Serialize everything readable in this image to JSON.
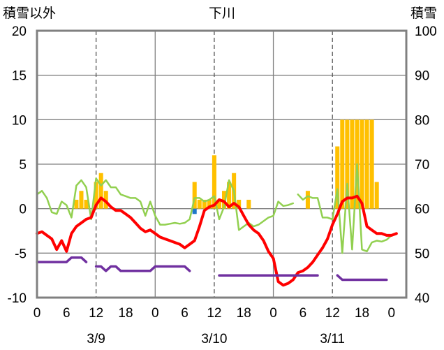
{
  "chart_data": {
    "type": "bar+line",
    "title": "下川",
    "left_axis_label": "積雪以外",
    "right_axis_label": "積雪",
    "y_left": {
      "min": -10,
      "max": 20,
      "ticks": [
        -10,
        -5,
        0,
        5,
        10,
        15,
        20
      ]
    },
    "y_right": {
      "min": 40,
      "max": 100,
      "ticks": [
        40,
        50,
        60,
        70,
        80,
        90,
        100
      ]
    },
    "x_range_hours": [
      0,
      75
    ],
    "x_ticks": [
      {
        "h": 0,
        "label": "0"
      },
      {
        "h": 6,
        "label": "6"
      },
      {
        "h": 12,
        "label": "12"
      },
      {
        "h": 18,
        "label": "18"
      },
      {
        "h": 24,
        "label": "0"
      },
      {
        "h": 30,
        "label": "6"
      },
      {
        "h": 36,
        "label": "12"
      },
      {
        "h": 42,
        "label": "18"
      },
      {
        "h": 48,
        "label": "0"
      },
      {
        "h": 54,
        "label": "6"
      },
      {
        "h": 60,
        "label": "12"
      },
      {
        "h": 66,
        "label": "18"
      },
      {
        "h": 72,
        "label": "0"
      }
    ],
    "date_labels": [
      {
        "h": 12,
        "label": "3/9"
      },
      {
        "h": 36,
        "label": "3/10"
      },
      {
        "h": 60,
        "label": "3/11"
      }
    ],
    "day_boundaries": [
      24,
      48
    ],
    "noon_lines": [
      12,
      36,
      60
    ],
    "grid": true,
    "colors": {
      "precip": "#FFC000",
      "precip_alt": "#1F77C8",
      "temperature": "#FF0000",
      "wind": "#92D050",
      "snow_depth": "#7030A0"
    },
    "series": [
      {
        "key": "precip",
        "kind": "bar",
        "axis": "left",
        "color": "#FFC000",
        "points": [
          [
            8,
            1
          ],
          [
            9,
            2
          ],
          [
            10,
            1
          ],
          [
            12,
            3
          ],
          [
            13,
            4
          ],
          [
            14,
            2
          ],
          [
            32,
            3
          ],
          [
            33,
            1
          ],
          [
            34,
            1
          ],
          [
            35,
            1
          ],
          [
            36,
            6
          ],
          [
            37,
            1
          ],
          [
            38,
            2
          ],
          [
            39,
            3
          ],
          [
            40,
            4
          ],
          [
            41,
            1
          ],
          [
            43,
            1
          ],
          [
            55,
            2
          ],
          [
            61,
            7
          ],
          [
            62,
            10
          ],
          [
            63,
            10
          ],
          [
            64,
            10
          ],
          [
            65,
            10
          ],
          [
            66,
            10
          ],
          [
            67,
            10
          ],
          [
            68,
            10
          ],
          [
            69,
            3
          ]
        ]
      },
      {
        "key": "precip_alt",
        "kind": "bar",
        "axis": "left",
        "color": "#1F77C8",
        "points": [
          [
            32,
            -0.6
          ]
        ]
      },
      {
        "key": "wind",
        "kind": "line",
        "axis": "left",
        "color": "#92D050",
        "segments": [
          [
            [
              0,
              1.6
            ],
            [
              1,
              2
            ],
            [
              2,
              1.2
            ],
            [
              3,
              -0.4
            ],
            [
              4,
              -0.6
            ],
            [
              5,
              0.8
            ],
            [
              6,
              0.4
            ],
            [
              7,
              -1
            ],
            [
              8,
              2.6
            ],
            [
              9,
              3.2
            ],
            [
              10,
              2.4
            ],
            [
              11,
              -1.2
            ],
            [
              12,
              3.4
            ],
            [
              13,
              2.6
            ],
            [
              14,
              3.2
            ],
            [
              15,
              2.4
            ],
            [
              16,
              2.4
            ],
            [
              17,
              1.6
            ],
            [
              18,
              1.4
            ],
            [
              19,
              1.2
            ],
            [
              20,
              1.2
            ],
            [
              21,
              0.8
            ],
            [
              22,
              -0.8
            ],
            [
              23,
              0.8
            ],
            [
              24,
              -0.8
            ],
            [
              25,
              -1.8
            ],
            [
              26,
              -1.8
            ],
            [
              27,
              -1.7
            ],
            [
              28,
              -1.6
            ],
            [
              29,
              -1.7
            ],
            [
              30,
              -1.6
            ],
            [
              31,
              -1.2
            ],
            [
              32,
              1.2
            ],
            [
              33,
              1.2
            ],
            [
              34,
              0.8
            ],
            [
              35,
              1
            ],
            [
              36,
              1.4
            ],
            [
              37,
              -1.2
            ],
            [
              38,
              0.2
            ],
            [
              39,
              3.2
            ],
            [
              40,
              2
            ],
            [
              41,
              -2.4
            ],
            [
              42,
              -2
            ],
            [
              43,
              -1.6
            ],
            [
              44,
              -2
            ],
            [
              45,
              -1.8
            ],
            [
              46,
              -1.4
            ],
            [
              47,
              -1
            ],
            [
              48,
              -0.8
            ],
            [
              49,
              0.8
            ],
            [
              50,
              0.3
            ],
            [
              51,
              0.4
            ],
            [
              52,
              0.6
            ]
          ],
          [
            [
              53,
              1.6
            ],
            [
              54,
              1
            ],
            [
              55,
              1.4
            ],
            [
              56,
              1.2
            ],
            [
              57,
              1.2
            ],
            [
              58,
              -1
            ],
            [
              59,
              -1
            ],
            [
              60,
              -1.2
            ],
            [
              61,
              2.2
            ],
            [
              62,
              -5
            ],
            [
              63,
              2.8
            ],
            [
              64,
              -4.6
            ],
            [
              65,
              5
            ],
            [
              66,
              -4.6
            ],
            [
              67,
              -4.8
            ],
            [
              68,
              -3.8
            ],
            [
              69,
              -3.6
            ],
            [
              70,
              -3.7
            ],
            [
              71,
              -3.5
            ],
            [
              72,
              -3
            ]
          ]
        ]
      },
      {
        "key": "temperature",
        "kind": "line",
        "axis": "left",
        "color": "#FF0000",
        "segments": [
          [
            [
              0,
              -2.8
            ],
            [
              1,
              -2.6
            ],
            [
              2,
              -3
            ],
            [
              3,
              -3.4
            ],
            [
              4,
              -4.6
            ],
            [
              5,
              -3.6
            ],
            [
              6,
              -4.8
            ],
            [
              7,
              -2.8
            ],
            [
              8,
              -2
            ],
            [
              9,
              -1.6
            ],
            [
              10,
              -1.2
            ],
            [
              11,
              -1
            ],
            [
              12,
              0.4
            ],
            [
              13,
              1.2
            ],
            [
              14,
              0.8
            ],
            [
              15,
              0.2
            ],
            [
              16,
              -0.2
            ],
            [
              17,
              -0.2
            ],
            [
              18,
              -0.6
            ],
            [
              19,
              -1
            ],
            [
              20,
              -1.6
            ],
            [
              21,
              -2.2
            ],
            [
              22,
              -2.6
            ],
            [
              23,
              -2.4
            ],
            [
              24,
              -2.8
            ],
            [
              25,
              -3.2
            ],
            [
              26,
              -3.4
            ],
            [
              27,
              -3.6
            ],
            [
              28,
              -3.8
            ],
            [
              29,
              -4
            ],
            [
              30,
              -4.4
            ],
            [
              31,
              -4
            ],
            [
              32,
              -3.6
            ],
            [
              33,
              -2
            ],
            [
              34,
              -0.2
            ],
            [
              35,
              0.2
            ],
            [
              36,
              0.4
            ],
            [
              37,
              1
            ],
            [
              38,
              0.8
            ],
            [
              39,
              0.2
            ],
            [
              40,
              0.6
            ],
            [
              41,
              0.2
            ],
            [
              42,
              -0.8
            ],
            [
              43,
              -1.8
            ],
            [
              44,
              -2.4
            ],
            [
              45,
              -2.8
            ],
            [
              46,
              -3.6
            ],
            [
              47,
              -4.8
            ],
            [
              48,
              -5.6
            ],
            [
              49,
              -8.2
            ],
            [
              50,
              -8.6
            ],
            [
              51,
              -8.4
            ],
            [
              52,
              -8
            ],
            [
              53,
              -7.2
            ],
            [
              54,
              -7
            ],
            [
              55,
              -6.6
            ],
            [
              56,
              -6
            ],
            [
              57,
              -5.2
            ],
            [
              58,
              -4.4
            ],
            [
              59,
              -3.4
            ],
            [
              60,
              -1.8
            ],
            [
              61,
              -0.6
            ],
            [
              62,
              0.8
            ],
            [
              63,
              1.2
            ],
            [
              64,
              1.2
            ],
            [
              65,
              1.4
            ],
            [
              66,
              0.6
            ],
            [
              67,
              -2
            ],
            [
              68,
              -2.4
            ],
            [
              69,
              -2.8
            ],
            [
              70,
              -2.8
            ],
            [
              71,
              -3
            ],
            [
              72,
              -3
            ],
            [
              73,
              -2.8
            ]
          ]
        ]
      },
      {
        "key": "snow_depth",
        "kind": "line",
        "axis": "right",
        "color": "#7030A0",
        "segments": [
          [
            [
              0,
              48
            ],
            [
              6,
              48
            ],
            [
              7,
              49
            ],
            [
              8,
              49
            ],
            [
              9,
              49
            ],
            [
              10,
              48
            ]
          ],
          [
            [
              12,
              47
            ],
            [
              13,
              47
            ],
            [
              14,
              46
            ],
            [
              15,
              47
            ],
            [
              16,
              47
            ],
            [
              17,
              46
            ],
            [
              23,
              46
            ],
            [
              24,
              47
            ],
            [
              30,
              47
            ],
            [
              31,
              46
            ]
          ],
          [
            [
              37,
              45
            ],
            [
              57,
              45
            ]
          ],
          [
            [
              61,
              45
            ],
            [
              62,
              44
            ],
            [
              71,
              44
            ]
          ]
        ]
      }
    ]
  }
}
